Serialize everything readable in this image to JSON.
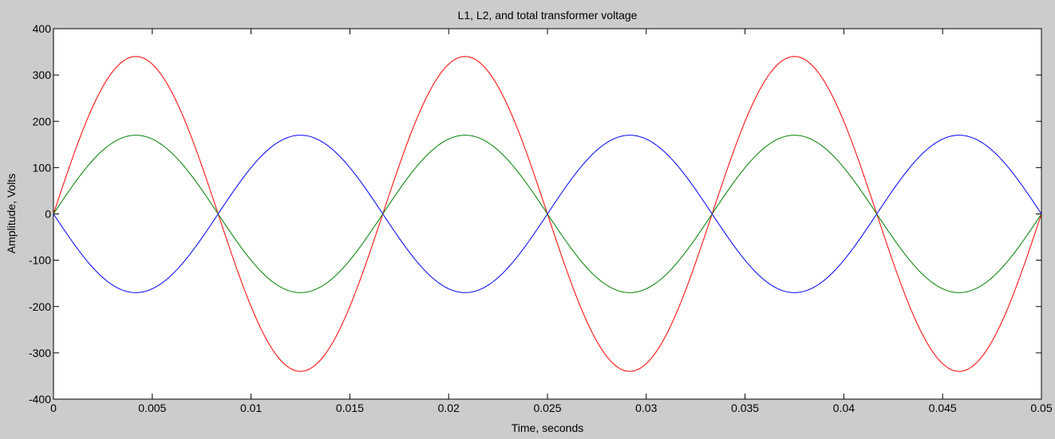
{
  "chart_data": {
    "type": "line",
    "title": "L1, L2, and total transformer voltage",
    "xlabel": "Time, seconds",
    "ylabel": "Amplitude, Volts",
    "xlim": [
      0,
      0.05
    ],
    "ylim": [
      -400,
      400
    ],
    "xticks": [
      0,
      0.005,
      0.01,
      0.015,
      0.02,
      0.025,
      0.03,
      0.035,
      0.04,
      0.045,
      0.05
    ],
    "xtick_labels": [
      "0",
      "0.005",
      "0.01",
      "0.015",
      "0.02",
      "0.025",
      "0.03",
      "0.035",
      "0.04",
      "0.045",
      "0.05"
    ],
    "yticks": [
      -400,
      -300,
      -200,
      -100,
      0,
      100,
      200,
      300,
      400
    ],
    "ytick_labels": [
      "-400",
      "-300",
      "-200",
      "-100",
      "0",
      "100",
      "200",
      "300",
      "400"
    ],
    "grid": false,
    "legend": "none",
    "sample_step": 0.0001,
    "series": [
      {
        "color": "#ff0000",
        "amplitude": 340,
        "frequency_hz": 60,
        "phase_deg": 0
      },
      {
        "color": "#008000",
        "amplitude": 170,
        "frequency_hz": 60,
        "phase_deg": 0
      },
      {
        "color": "#0000ff",
        "amplitude": 170,
        "frequency_hz": 60,
        "phase_deg": 180
      }
    ]
  }
}
